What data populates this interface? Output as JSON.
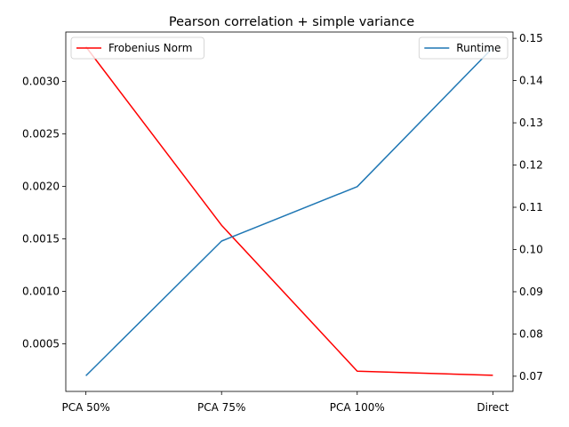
{
  "chart_data": {
    "type": "line",
    "title": "Pearson correlation + simple variance",
    "categories": [
      "PCA 50%",
      "PCA 75%",
      "PCA 100%",
      "Direct"
    ],
    "series": [
      {
        "name": "Frobenius Norm",
        "axis": "left",
        "color": "#ff0000",
        "values": [
          0.00333,
          0.00163,
          0.00024,
          0.0002
        ]
      },
      {
        "name": "Runtime",
        "axis": "right",
        "color": "#1f77b4",
        "values": [
          0.0701,
          0.102,
          0.1149,
          0.1478
        ]
      }
    ],
    "left_axis": {
      "ylim": [
        4.7e-05,
        0.00347
      ],
      "ticks": [
        0.0005,
        0.001,
        0.0015,
        0.002,
        0.0025,
        0.003
      ],
      "tick_labels": [
        "0.0005",
        "0.0010",
        "0.0015",
        "0.0020",
        "0.0025",
        "0.0030"
      ]
    },
    "right_axis": {
      "ylim": [
        0.0664,
        0.1515
      ],
      "ticks": [
        0.07,
        0.08,
        0.09,
        0.1,
        0.11,
        0.12,
        0.13,
        0.14,
        0.15
      ],
      "tick_labels": [
        "0.07",
        "0.08",
        "0.09",
        "0.10",
        "0.11",
        "0.12",
        "0.13",
        "0.14",
        "0.15"
      ]
    },
    "legends": [
      {
        "placement": "upper-left",
        "entries": [
          "Frobenius Norm"
        ]
      },
      {
        "placement": "upper-right",
        "entries": [
          "Runtime"
        ]
      }
    ],
    "grid": false
  }
}
